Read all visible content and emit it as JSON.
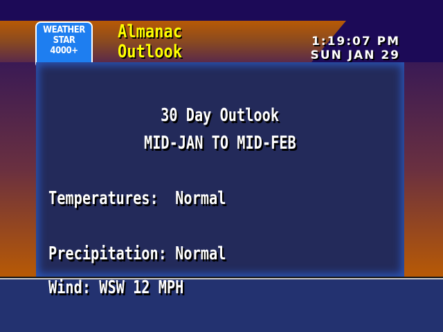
{
  "logo": {
    "line1": "WEATHER",
    "line2": "STAR",
    "line3": "4000+"
  },
  "header": {
    "title_line1": "Almanac",
    "title_line2": "Outlook",
    "time": "1:19:07 PM",
    "date": "SUN JAN 29"
  },
  "main": {
    "heading": "30 Day Outlook",
    "period": "MID-JAN TO MID-FEB",
    "temperatures_label": "Temperatures:  Normal",
    "precipitation_label": "Precipitation: Normal"
  },
  "ticker": {
    "text": "Wind: WSW 12 MPH"
  },
  "colors": {
    "background": "#1c0a57",
    "orange": "#b85a05",
    "panel": "#232a5a",
    "panel_border": "#2b56b8",
    "logo": "#1e7ef0",
    "title": "#ffff00",
    "ticker": "#233270"
  }
}
